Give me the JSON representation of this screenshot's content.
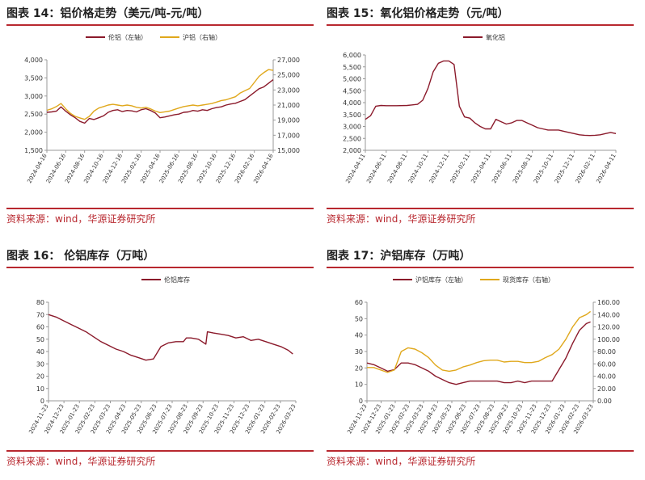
{
  "source_text": "资料来源：wind，华源证券研究所",
  "colors": {
    "red": "#8b1a2b",
    "gold": "#e0a81c",
    "rule": "#b8282f"
  },
  "chart_data": [
    {
      "id": "fig14",
      "caption": "图表 14：铝价格走势（美元/吨-元/吨）",
      "type": "line",
      "legend_position": "top-center",
      "x_ticks": [
        "2024-04-16",
        "2024-06-16",
        "2024-08-16",
        "2024-10-16",
        "2024-12-16",
        "2025-02-16",
        "2025-04-16",
        "2025-06-16",
        "2025-08-16",
        "2025-10-16",
        "2025-12-16",
        "2026-02-16",
        "2026-04-16"
      ],
      "y_left": {
        "min": 1500,
        "max": 4000,
        "ticks": [
          "1,500",
          "2,000",
          "2,500",
          "3,000",
          "3,500",
          "4,000"
        ]
      },
      "y_right": {
        "min": 15000,
        "max": 27000,
        "ticks": [
          "15,000",
          "17,000",
          "19,000",
          "21,000",
          "23,000",
          "25,000",
          "27,000"
        ]
      },
      "x_range": [
        0,
        24
      ],
      "series": [
        {
          "name": "伦铝（左轴）",
          "axis": "left",
          "color": "#8b1a2b",
          "x": [
            0,
            0.5,
            1,
            1.5,
            2,
            2.5,
            3,
            3.5,
            4,
            4.5,
            5,
            5.5,
            6,
            6.5,
            7,
            7.5,
            8,
            8.5,
            9,
            9.5,
            10,
            10.5,
            11,
            11.5,
            12,
            12.5,
            13,
            13.5,
            14,
            14.5,
            15,
            15.5,
            16,
            16.5,
            17,
            17.5,
            18,
            18.5,
            19,
            19.5,
            20,
            20.5,
            21,
            21.5,
            22,
            22.5,
            23,
            23.5,
            24
          ],
          "y": [
            2550,
            2560,
            2580,
            2700,
            2580,
            2480,
            2400,
            2300,
            2250,
            2380,
            2350,
            2400,
            2450,
            2550,
            2600,
            2620,
            2570,
            2600,
            2590,
            2560,
            2620,
            2650,
            2600,
            2530,
            2400,
            2420,
            2450,
            2480,
            2500,
            2550,
            2560,
            2600,
            2580,
            2620,
            2600,
            2650,
            2680,
            2700,
            2750,
            2780,
            2800,
            2850,
            2900,
            3000,
            3100,
            3200,
            3250,
            3350,
            3450
          ]
        },
        {
          "name": "沪铝（右轴）",
          "axis": "right",
          "color": "#e0a81c",
          "x": [
            0,
            0.5,
            1,
            1.5,
            2,
            2.5,
            3,
            3.5,
            4,
            4.5,
            5,
            5.5,
            6,
            6.5,
            7,
            7.5,
            8,
            8.5,
            9,
            9.5,
            10,
            10.5,
            11,
            11.5,
            12,
            12.5,
            13,
            13.5,
            14,
            14.5,
            15,
            15.5,
            16,
            16.5,
            17,
            17.5,
            18,
            18.5,
            19,
            19.5,
            20,
            20.5,
            21,
            21.5,
            22,
            22.5,
            23,
            23.5,
            24
          ],
          "y": [
            20300,
            20500,
            20800,
            21200,
            20500,
            19900,
            19500,
            19300,
            19100,
            19500,
            20200,
            20600,
            20800,
            21000,
            21100,
            21000,
            20900,
            21000,
            20900,
            20700,
            20600,
            20700,
            20500,
            20200,
            20000,
            20100,
            20200,
            20400,
            20600,
            20800,
            20900,
            21000,
            20900,
            21000,
            21100,
            21200,
            21400,
            21600,
            21700,
            21900,
            22100,
            22600,
            22900,
            23200,
            24000,
            24800,
            25300,
            25700,
            25600
          ]
        }
      ]
    },
    {
      "id": "fig15",
      "caption": "图表 15：氧化铝价格走势（元/吨）",
      "type": "line",
      "legend_position": "top-center",
      "x_ticks": [
        "2024-04-11",
        "2024-06-11",
        "2024-08-11",
        "2024-10-11",
        "2024-12-11",
        "2025-02-11",
        "2025-04-11",
        "2025-06-11",
        "2025-08-11",
        "2025-10-11",
        "2025-12-11",
        "2026-02-11",
        "2026-04-11"
      ],
      "y_left": {
        "min": 2000,
        "max": 6000,
        "ticks": [
          "2,000",
          "2,500",
          "3,000",
          "3,500",
          "4,000",
          "4,500",
          "5,000",
          "5,500",
          "6,000"
        ]
      },
      "x_range": [
        0,
        24
      ],
      "series": [
        {
          "name": "氧化铝",
          "axis": "left",
          "color": "#8b1a2b",
          "x": [
            0,
            0.5,
            1,
            1.5,
            2,
            3,
            4,
            5,
            5.5,
            6,
            6.5,
            7,
            7.5,
            8,
            8.5,
            9,
            9.5,
            10,
            10.5,
            11,
            11.5,
            12,
            12.5,
            13,
            13.5,
            14,
            14.5,
            15,
            15.5,
            16,
            16.5,
            17,
            17.5,
            18,
            18.5,
            19,
            19.5,
            20,
            20.5,
            21,
            21.5,
            22,
            22.5,
            23,
            23.5,
            24
          ],
          "y": [
            3300,
            3450,
            3850,
            3880,
            3870,
            3870,
            3880,
            3930,
            4100,
            4600,
            5300,
            5650,
            5750,
            5750,
            5600,
            3850,
            3400,
            3350,
            3150,
            3000,
            2900,
            2900,
            3300,
            3200,
            3100,
            3150,
            3250,
            3250,
            3150,
            3050,
            2950,
            2900,
            2850,
            2850,
            2850,
            2800,
            2750,
            2700,
            2650,
            2630,
            2620,
            2630,
            2650,
            2700,
            2750,
            2700
          ]
        }
      ]
    },
    {
      "id": "fig16",
      "caption": "图表 16：  伦铝库存（万吨）",
      "type": "line",
      "legend_position": "top-center",
      "x_ticks": [
        "2024-11-23",
        "2024-12-23",
        "2025-01-23",
        "2025-02-23",
        "2025-03-23",
        "2025-04-23",
        "2025-05-23",
        "2025-06-23",
        "2025-07-23",
        "2025-08-23",
        "2025-09-23",
        "2025-10-23",
        "2025-11-23",
        "2025-12-23",
        "2026-01-23",
        "2026-02-23",
        "2026-03-23"
      ],
      "y_left": {
        "min": 0,
        "max": 80,
        "ticks": [
          "0",
          "10",
          "20",
          "30",
          "40",
          "50",
          "60",
          "70",
          "80"
        ]
      },
      "x_range": [
        0,
        16.5
      ],
      "series": [
        {
          "name": "伦铝库存",
          "axis": "left",
          "color": "#8b1a2b",
          "x": [
            0,
            0.5,
            1,
            1.5,
            2,
            2.5,
            3,
            3.5,
            4,
            4.5,
            5,
            5.5,
            6,
            6.5,
            7,
            7.5,
            8,
            8.5,
            9,
            9.2,
            9.5,
            10,
            10.5,
            10.6,
            11,
            11.5,
            12,
            12.5,
            13,
            13.5,
            14,
            14.5,
            15,
            15.5,
            16,
            16.3
          ],
          "y": [
            70,
            68,
            65,
            62,
            59,
            56,
            52,
            48,
            45,
            42,
            40,
            37,
            35,
            33,
            34,
            44,
            47,
            48,
            48,
            51,
            51,
            50,
            46,
            56,
            55,
            54,
            53,
            51,
            52,
            49,
            50,
            48,
            46,
            44,
            41,
            38
          ]
        }
      ]
    },
    {
      "id": "fig17",
      "caption": "图表 17：沪铝库存（万吨）",
      "type": "line",
      "legend_position": "top-center",
      "x_ticks": [
        "2024-11-23",
        "2024-12-23",
        "2025-01-23",
        "2025-02-23",
        "2025-03-23",
        "2025-04-23",
        "2025-05-23",
        "2025-06-23",
        "2025-07-23",
        "2025-08-23",
        "2025-09-23",
        "2025-10-23",
        "2025-11-23",
        "2025-12-23",
        "2026-01-23",
        "2026-02-23",
        "2026-03-23"
      ],
      "y_left": {
        "min": 0,
        "max": 60,
        "ticks": [
          "0",
          "10",
          "20",
          "30",
          "40",
          "50",
          "60"
        ]
      },
      "y_right": {
        "min": 0,
        "max": 160,
        "ticks": [
          "0.00",
          "20.00",
          "40.00",
          "60.00",
          "80.00",
          "100.00",
          "120.00",
          "140.00",
          "160.00"
        ]
      },
      "x_range": [
        0,
        16.5
      ],
      "series": [
        {
          "name": "沪铝库存（左轴）",
          "axis": "left",
          "color": "#8b1a2b",
          "x": [
            0,
            0.5,
            1,
            1.5,
            2,
            2.5,
            3,
            3.5,
            4,
            4.5,
            5,
            5.5,
            6,
            6.5,
            7,
            7.5,
            8,
            8.5,
            9,
            9.5,
            10,
            10.5,
            11,
            11.5,
            12,
            12.5,
            13,
            13.5,
            14,
            14.5,
            15,
            15.5,
            16,
            16.3
          ],
          "y": [
            23,
            22,
            20,
            18,
            19,
            23,
            23,
            22,
            20,
            18,
            15,
            13,
            11,
            10,
            11,
            12,
            12,
            12,
            12,
            12,
            11,
            11,
            12,
            11,
            12,
            12,
            12,
            12,
            19,
            26,
            35,
            43,
            47,
            48
          ]
        },
        {
          "name": "现货库存（右轴）",
          "axis": "right",
          "color": "#e0a81c",
          "x": [
            0,
            0.5,
            1,
            1.5,
            2,
            2.5,
            3,
            3.5,
            4,
            4.5,
            5,
            5.5,
            6,
            6.5,
            7,
            7.5,
            8,
            8.5,
            9,
            9.5,
            10,
            10.5,
            11,
            11.5,
            12,
            12.5,
            13,
            13.5,
            14,
            14.5,
            15,
            15.5,
            16,
            16.3
          ],
          "y": [
            54,
            54,
            50,
            46,
            50,
            80,
            86,
            84,
            78,
            70,
            58,
            50,
            48,
            50,
            55,
            58,
            62,
            65,
            66,
            66,
            63,
            64,
            64,
            62,
            62,
            64,
            70,
            75,
            84,
            100,
            120,
            135,
            140,
            145
          ]
        }
      ]
    }
  ]
}
